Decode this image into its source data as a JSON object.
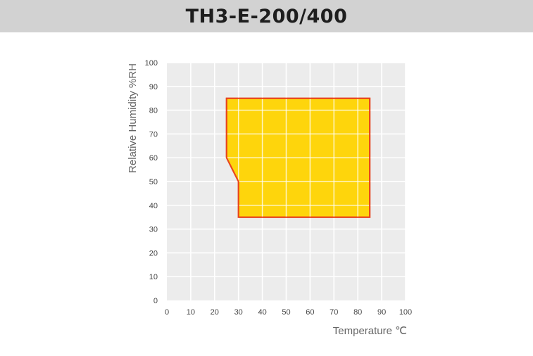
{
  "header": {
    "title": "TH3-E-200/400"
  },
  "chart_data": {
    "type": "area",
    "title": "TH3-E-200/400",
    "xlabel": "Temperature ℃",
    "ylabel": "Relative Humidity %RH",
    "xlim": [
      0,
      100
    ],
    "ylim": [
      0,
      100
    ],
    "x_ticks": [
      0,
      10,
      20,
      30,
      40,
      50,
      60,
      70,
      80,
      90,
      100
    ],
    "y_ticks": [
      0,
      10,
      20,
      30,
      40,
      50,
      60,
      70,
      80,
      90,
      100
    ],
    "grid": true,
    "series": [
      {
        "x": [
          25,
          85,
          85,
          30,
          30,
          25
        ],
        "y": [
          85,
          85,
          35,
          35,
          50,
          60
        ]
      }
    ],
    "colors": {
      "fill": "#ffd400",
      "stroke": "#e8451e",
      "plot_bg": "#ececec",
      "grid": "#ffffff"
    }
  }
}
